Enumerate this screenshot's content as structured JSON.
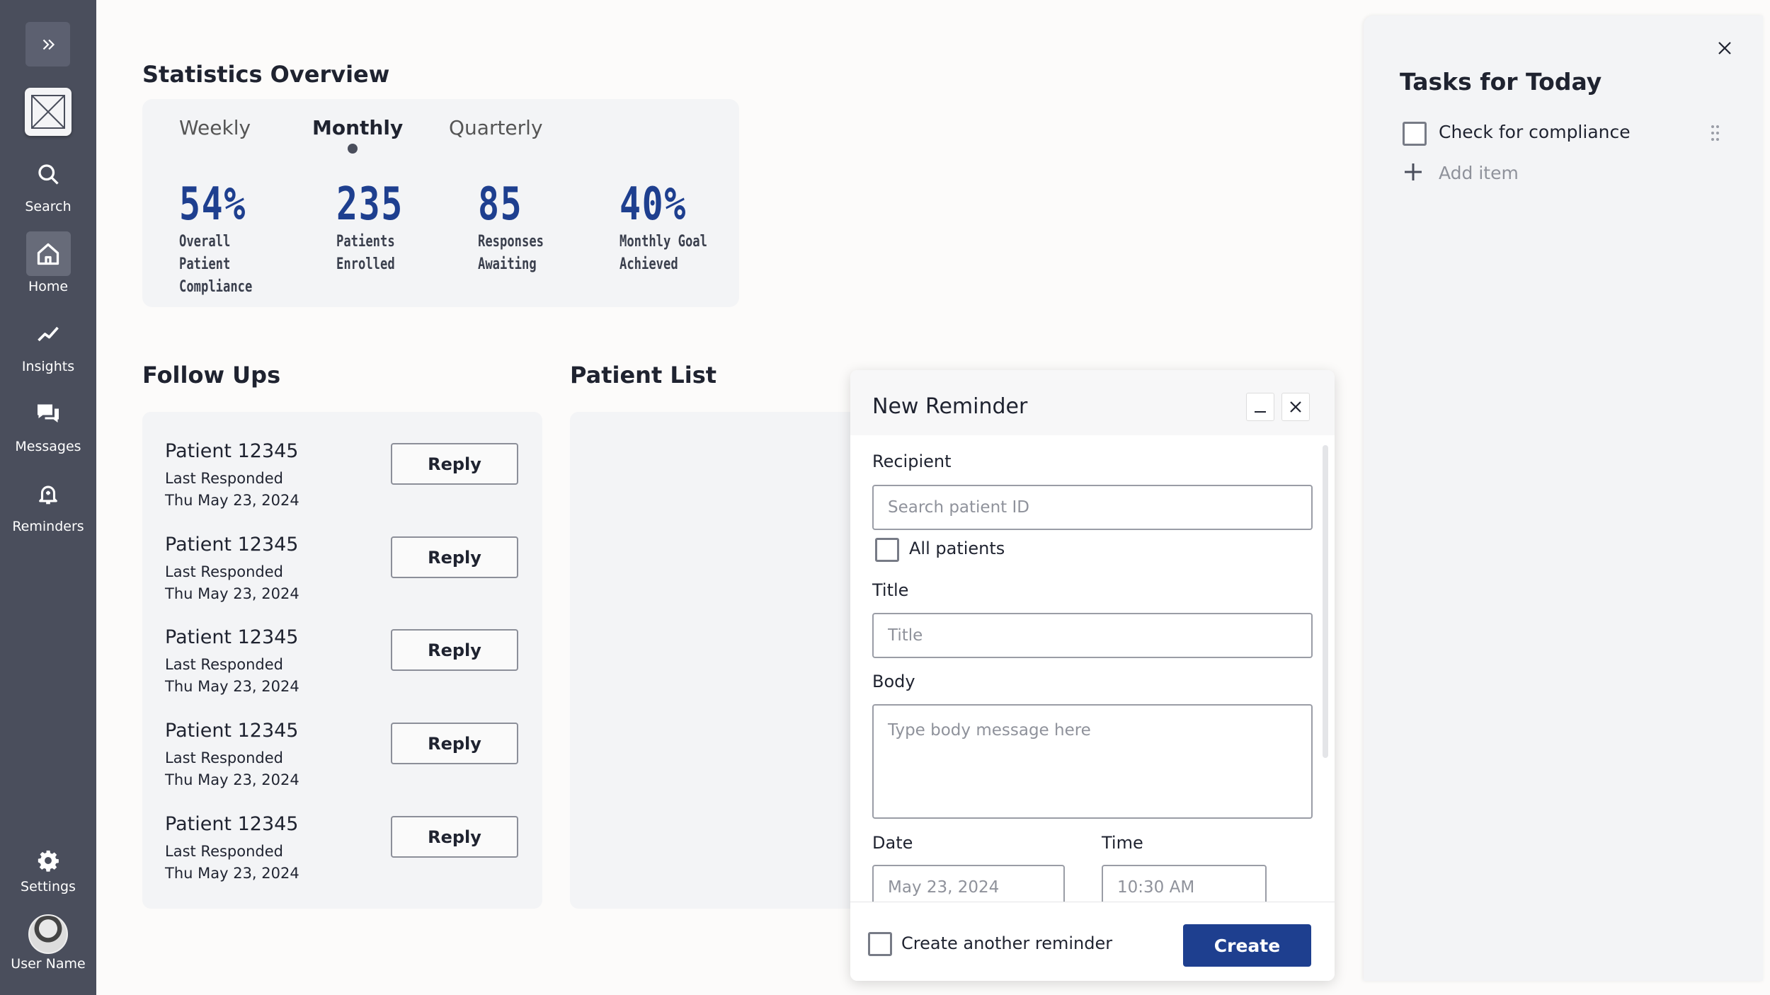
{
  "sidebar": {
    "items": [
      {
        "label": "Search",
        "icon": "search-icon"
      },
      {
        "label": "Home",
        "icon": "home-icon",
        "active": true
      },
      {
        "label": "Insights",
        "icon": "trend-line-icon"
      },
      {
        "label": "Messages",
        "icon": "chat-bubbles-icon"
      },
      {
        "label": "Reminders",
        "icon": "bell-icon"
      }
    ],
    "settings_label": "Settings",
    "user_name": "User Name"
  },
  "stats": {
    "title": "Statistics Overview",
    "tabs": [
      {
        "label": "Weekly"
      },
      {
        "label": "Monthly",
        "active": true
      },
      {
        "label": "Quarterly"
      }
    ],
    "items": [
      {
        "value": "54%",
        "label_line1": "Overall Patient",
        "label_line2": "Compliance"
      },
      {
        "value": "235",
        "label_line1": "Patients",
        "label_line2": "Enrolled"
      },
      {
        "value": "85",
        "label_line1": "Responses",
        "label_line2": "Awaiting"
      },
      {
        "value": "40%",
        "label_line1": "Monthly Goal",
        "label_line2": "Achieved"
      }
    ]
  },
  "follow_ups": {
    "title": "Follow Ups",
    "rows": [
      {
        "patient": "Patient 12345",
        "status": "Last Responded",
        "date": "Thu May 23, 2024",
        "button": "Reply"
      },
      {
        "patient": "Patient 12345",
        "status": "Last Responded",
        "date": "Thu May 23, 2024",
        "button": "Reply"
      },
      {
        "patient": "Patient 12345",
        "status": "Last Responded",
        "date": "Thu May 23, 2024",
        "button": "Reply"
      },
      {
        "patient": "Patient 12345",
        "status": "Last Responded",
        "date": "Thu May 23, 2024",
        "button": "Reply"
      },
      {
        "patient": "Patient 12345",
        "status": "Last Responded",
        "date": "Thu May 23, 2024",
        "button": "Reply"
      }
    ]
  },
  "patient_list": {
    "title": "Patient List"
  },
  "reminder": {
    "title": "New Reminder",
    "recipient_label": "Recipient",
    "recipient_placeholder": "Search patient ID",
    "all_patients_label": "All patients",
    "title_label": "Title",
    "title_placeholder": "Title",
    "body_label": "Body",
    "body_placeholder": "Type body message here",
    "date_label": "Date",
    "date_placeholder": "May 23, 2024",
    "time_label": "Time",
    "time_placeholder": "10:30 AM",
    "create_another_label": "Create another reminder",
    "create_button": "Create"
  },
  "tasks": {
    "title": "Tasks for Today",
    "items": [
      {
        "label": "Check for compliance",
        "checked": false
      }
    ],
    "add_item_label": "Add item"
  },
  "colors": {
    "sidebar_bg": "#4a4e5c",
    "accent": "#1e3f8f",
    "card_bg": "#f3f4f6",
    "page_bg": "#fcfbfa"
  }
}
